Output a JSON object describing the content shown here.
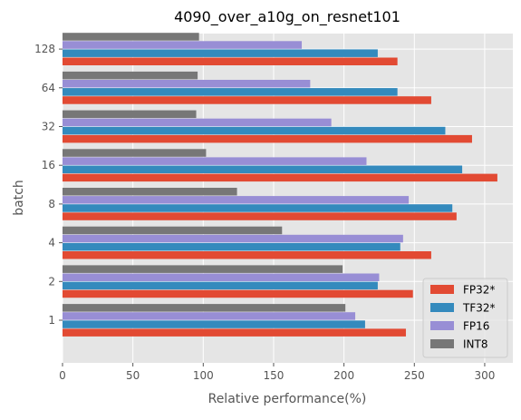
{
  "chart_data": {
    "type": "bar",
    "orientation": "horizontal",
    "title": "4090_over_a10g_on_resnet101",
    "xlabel": "Relative performance(%)",
    "ylabel": "batch",
    "categories": [
      "1",
      "2",
      "4",
      "8",
      "16",
      "32",
      "64",
      "128"
    ],
    "xlim": [
      0,
      320
    ],
    "xticks": [
      0,
      50,
      100,
      150,
      200,
      250,
      300
    ],
    "grid": true,
    "legend_position": "lower-right",
    "series": [
      {
        "name": "FP32*",
        "color": "#E24A33",
        "values": [
          244,
          249,
          262,
          280,
          309,
          291,
          262,
          238
        ]
      },
      {
        "name": "TF32*",
        "color": "#348ABD",
        "values": [
          215,
          224,
          240,
          277,
          284,
          272,
          238,
          224
        ]
      },
      {
        "name": "FP16",
        "color": "#988ED5",
        "values": [
          208,
          225,
          242,
          246,
          216,
          191,
          176,
          170
        ]
      },
      {
        "name": "INT8",
        "color": "#777777",
        "values": [
          201,
          199,
          156,
          124,
          102,
          95,
          96,
          97
        ]
      }
    ]
  }
}
